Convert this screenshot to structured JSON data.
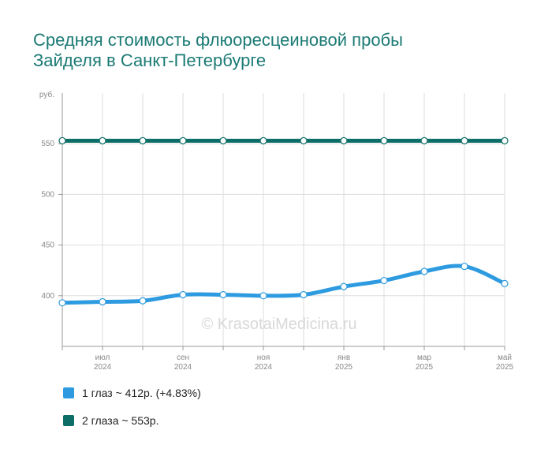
{
  "title": {
    "line1": "Средняя стоимость флюоресцеиновой пробы",
    "line2": "Зайделя в Санкт-Петербурге"
  },
  "watermark": "© KrasotaiMedicina.ru",
  "chart_data": {
    "type": "line",
    "y_unit": "руб.",
    "ylim": [
      350,
      600
    ],
    "yticks": [
      400,
      450,
      500,
      550
    ],
    "grid": true,
    "x": [
      "2024-06",
      "2024-07",
      "2024-08",
      "2024-09",
      "2024-10",
      "2024-11",
      "2024-12",
      "2025-01",
      "2025-02",
      "2025-03",
      "2025-04",
      "2025-05"
    ],
    "x_ticks": [
      {
        "month": "июл",
        "year": "2024",
        "index": 1
      },
      {
        "month": "сен",
        "year": "2024",
        "index": 3
      },
      {
        "month": "ноя",
        "year": "2024",
        "index": 5
      },
      {
        "month": "янв",
        "year": "2025",
        "index": 7
      },
      {
        "month": "мар",
        "year": "2025",
        "index": 9
      },
      {
        "month": "май",
        "year": "2025",
        "index": 11
      }
    ],
    "series": [
      {
        "name": "1 глаз",
        "color": "#2e9be0",
        "values": [
          393,
          394,
          395,
          401,
          401,
          400,
          401,
          409,
          415,
          424,
          429,
          412
        ]
      },
      {
        "name": "2 глаза",
        "color": "#0d6e68",
        "values": [
          553,
          553,
          553,
          553,
          553,
          553,
          553,
          553,
          553,
          553,
          553,
          553
        ]
      }
    ],
    "legend_position": "bottom-left"
  },
  "legend": [
    {
      "label": "1 глаз ~ 412р. (+4.83%)",
      "color": "#2e9be0"
    },
    {
      "label": "2 глаза ~ 553р.",
      "color": "#0d6e68"
    }
  ]
}
